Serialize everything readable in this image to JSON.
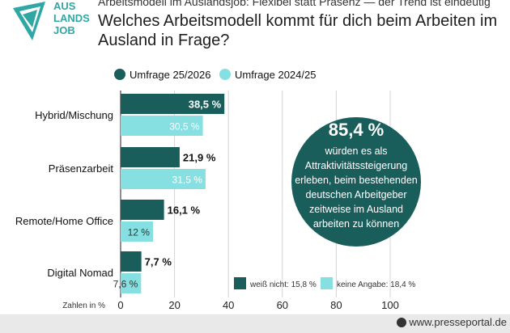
{
  "brand": {
    "logo_line1": "AUS",
    "logo_line2": "LANDS",
    "logo_line3": "JOB",
    "logo_color": "#2fa8a5"
  },
  "header": {
    "kicker": "Arbeitsmodell im Auslandsjob: Flexibel statt Präsenz — der Trend ist eindeutig",
    "title": "Welches Arbeitsmodell kommt für dich beim Arbeiten im Ausland in Frage?"
  },
  "chart_data": {
    "type": "bar",
    "orientation": "horizontal",
    "categories": [
      "Hybrid/Mischung",
      "Präsenzarbeit",
      "Remote/Home Office",
      "Digital Nomad"
    ],
    "series": [
      {
        "name": "Umfrage 25/2026",
        "values": [
          38.5,
          21.9,
          16.1,
          7.7
        ],
        "labels": [
          "38,5 %",
          "21,9 %",
          "16,1 %",
          "7,7 %"
        ],
        "color": "#1a5e5c"
      },
      {
        "name": "Umfrage 2024/25",
        "values": [
          30.5,
          31.5,
          12,
          7.6
        ],
        "labels": [
          "30,5 %",
          "31,5 %",
          "12 %",
          "7,6 %"
        ],
        "color": "#86dfe0"
      }
    ],
    "x_ticks": [
      "0",
      "20",
      "40",
      "60",
      "80",
      "100"
    ],
    "x_tick_values": [
      0,
      20,
      40,
      60,
      80,
      100
    ],
    "xlim": [
      0,
      100
    ],
    "unit_label": "Zahlen in %",
    "grid": true,
    "legend_position": "top-left",
    "callout": {
      "value": "85,4 %",
      "text_lines": [
        "würden es als",
        "Attraktivitätssteigerung",
        "erleben, beim bestehenden",
        "deutschen Arbeitgeber",
        "zeitweise im Ausland",
        "arbeiten zu können"
      ]
    },
    "extra_legend": [
      {
        "label": "weiß nicht: 15,8 %",
        "color": "#1a5e5c"
      },
      {
        "label": "keine Angabe: 18,4 %",
        "color": "#86dfe0"
      }
    ]
  },
  "watermark": {
    "text": "www.presseportal.de"
  }
}
